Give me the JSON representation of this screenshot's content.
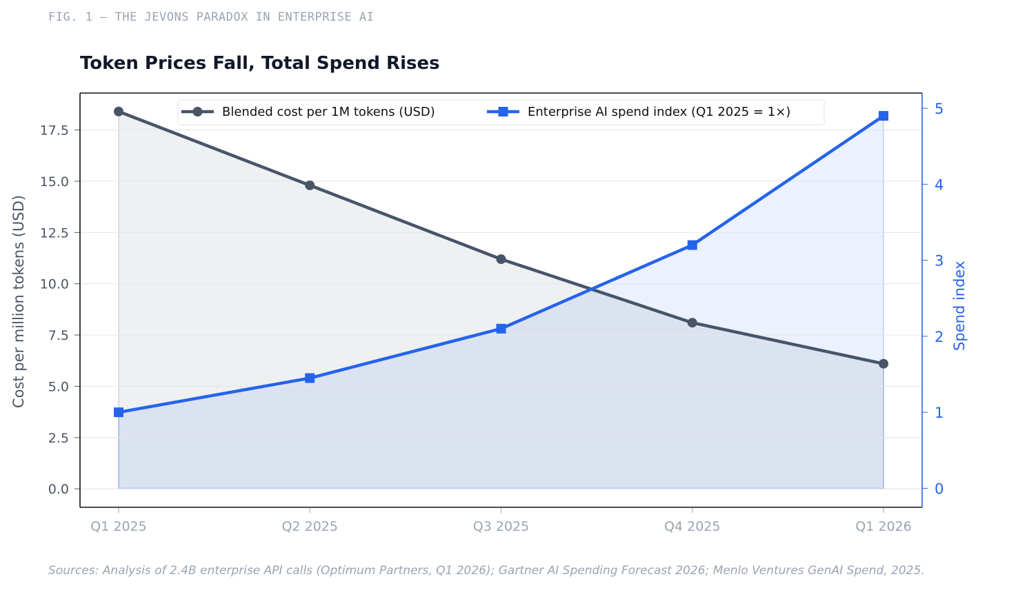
{
  "figure": {
    "label": "FIG. 1  —  THE JEVONS PARADOX IN ENTERPRISE AI",
    "source": "Sources: Analysis of 2.4B enterprise API calls (Optimum Partners, Q1 2026); Gartner AI Spending Forecast 2026; Menlo Ventures GenAI Spend, 2025."
  },
  "chart_data": {
    "type": "line",
    "title": "Token Prices Fall, Total Spend Rises",
    "categories": [
      "Q1 2025",
      "Q2 2025",
      "Q3 2025",
      "Q4 2025",
      "Q1 2026"
    ],
    "xlabel": "",
    "ylabel": "Cost per million tokens (USD)",
    "y2label": "Spend index",
    "ylim": [
      -0.9,
      19.3
    ],
    "y2lim": [
      -0.25,
      5.2
    ],
    "yticks": [
      "0.0",
      "2.5",
      "5.0",
      "7.5",
      "10.0",
      "12.5",
      "15.0",
      "17.5"
    ],
    "y2ticks": [
      "0",
      "1",
      "2",
      "3",
      "4",
      "5"
    ],
    "grid": true,
    "legend": "top-center",
    "series": [
      {
        "name": "Blended cost per 1M tokens (USD)",
        "axis": "left",
        "marker": "circle",
        "color": "#475569",
        "fill": true,
        "values": [
          18.4,
          14.8,
          11.2,
          8.1,
          6.1
        ]
      },
      {
        "name": "Enterprise AI spend index (Q1 2025 = 1×)",
        "axis": "right",
        "marker": "square",
        "color": "#2563eb",
        "fill": true,
        "values": [
          1.0,
          1.45,
          2.1,
          3.2,
          4.9
        ]
      }
    ]
  }
}
